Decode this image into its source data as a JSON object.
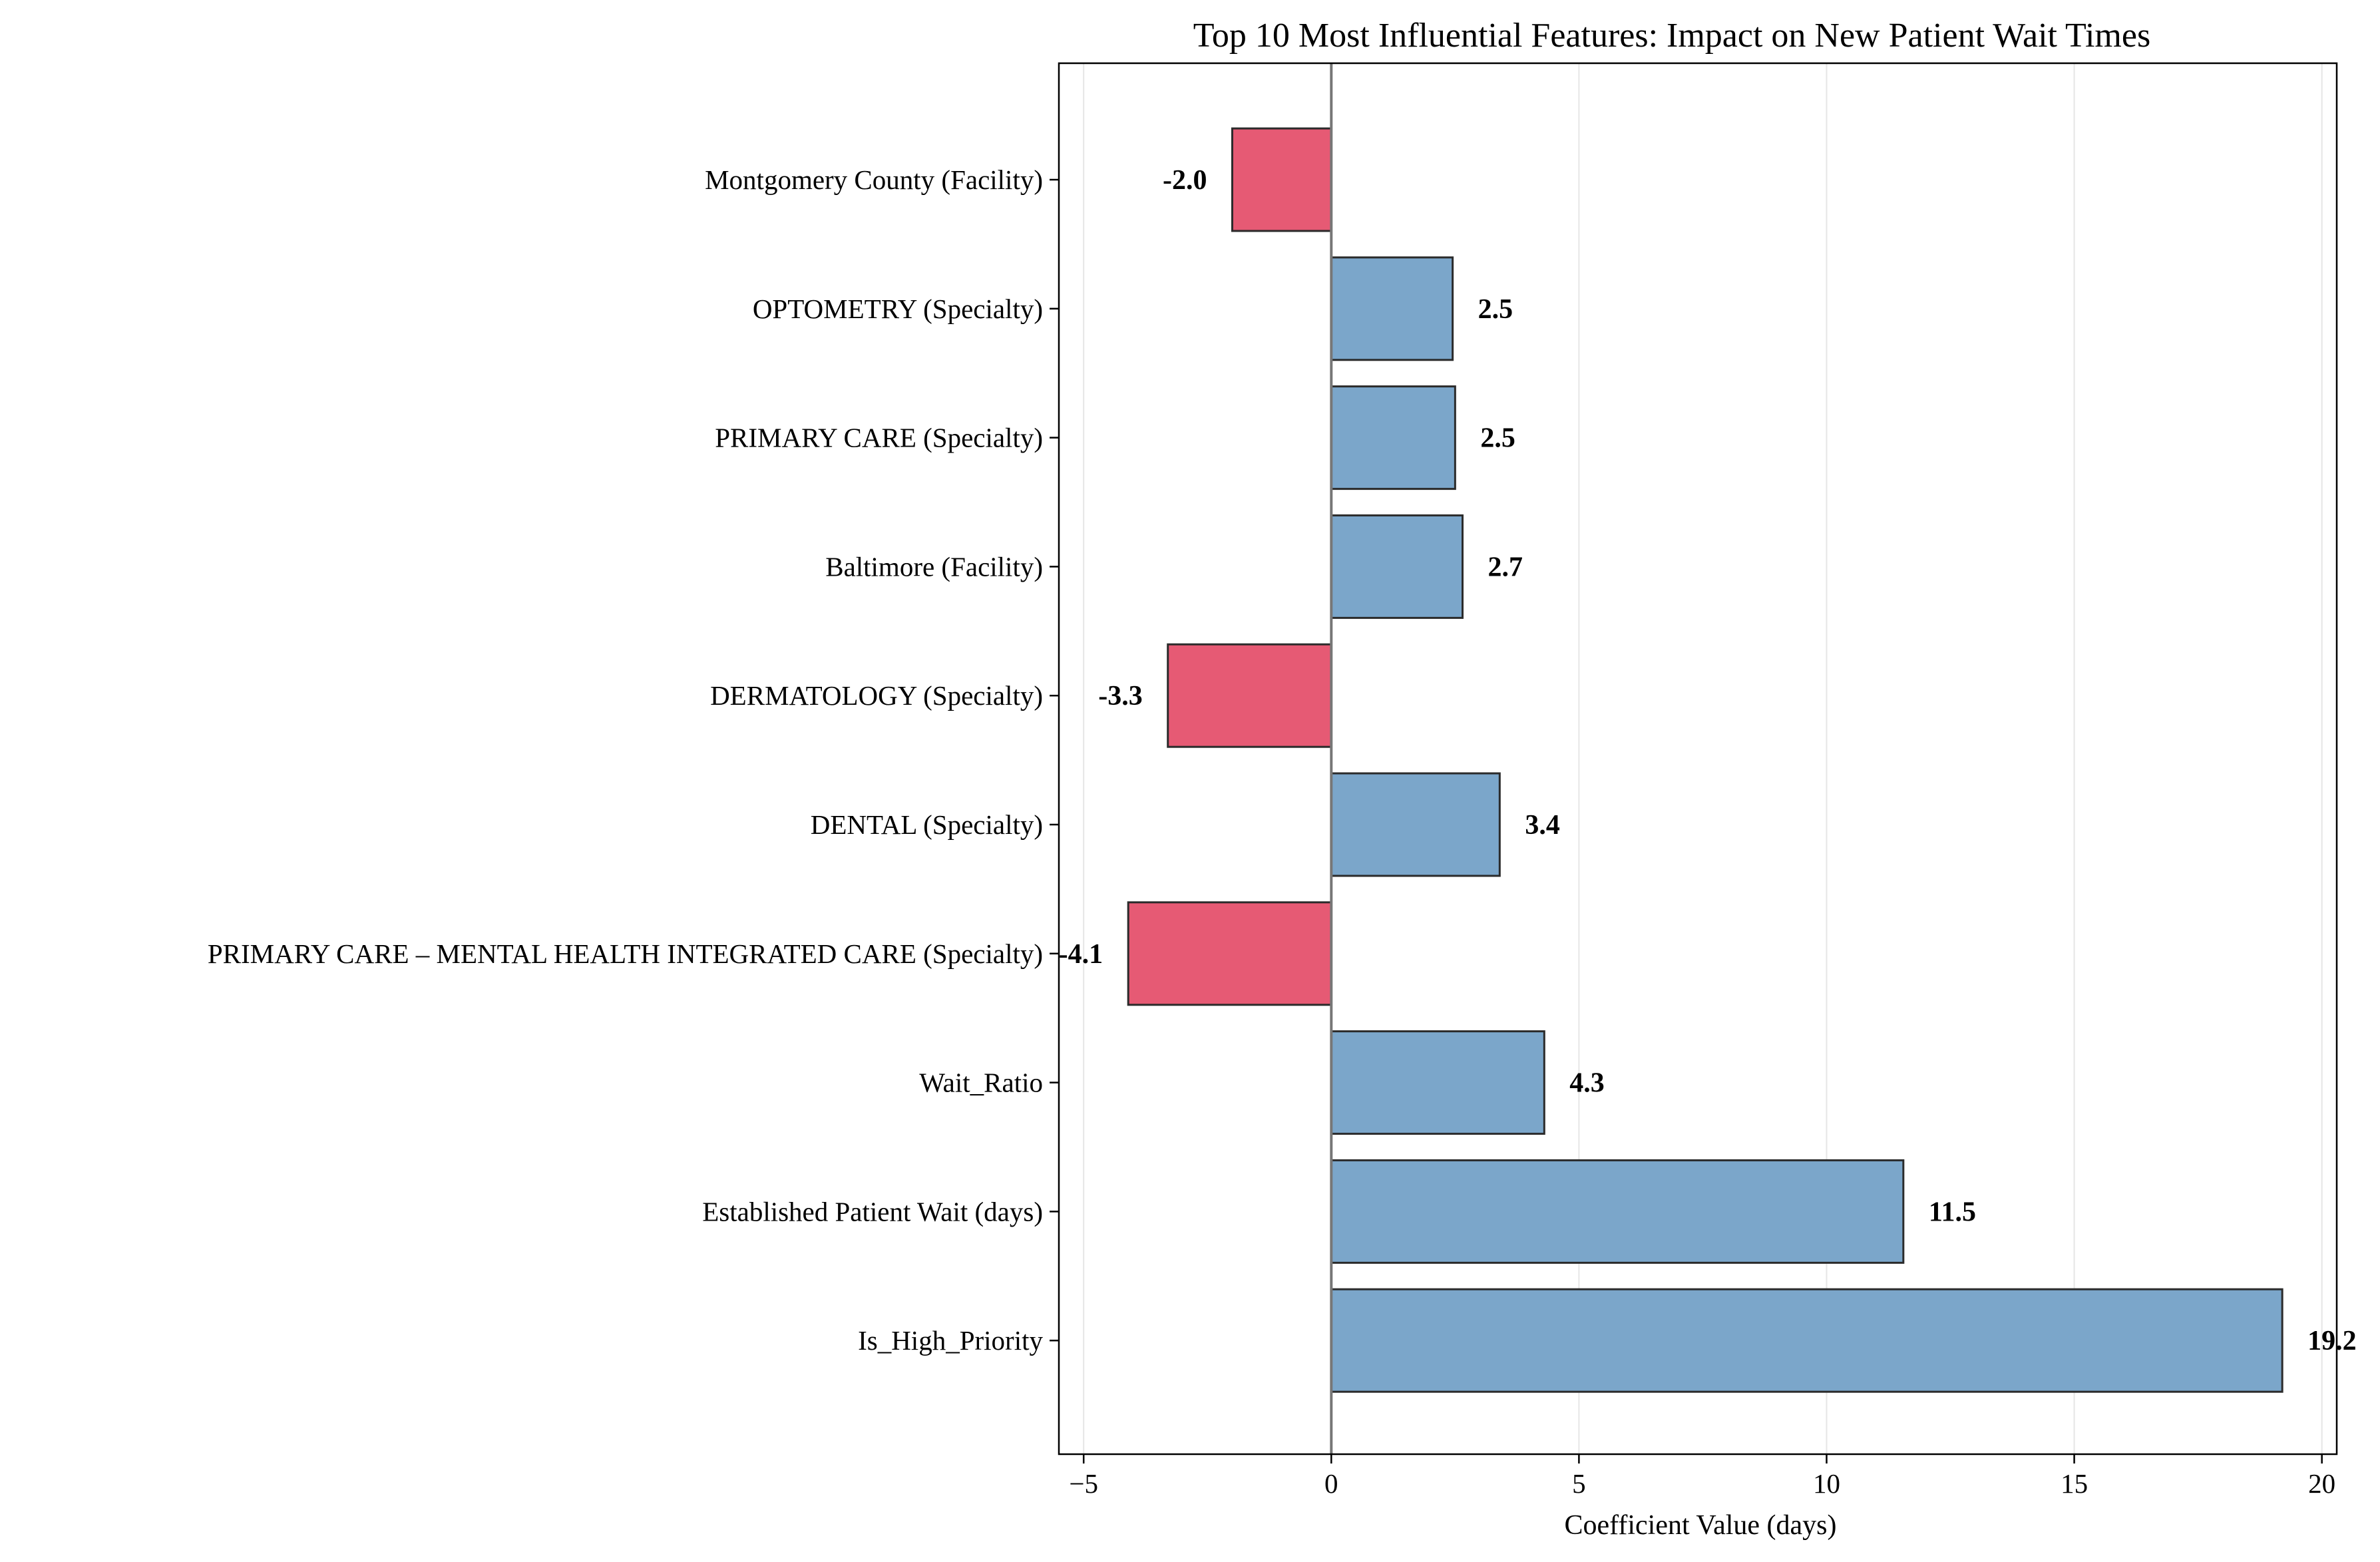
{
  "chart_data": {
    "type": "bar",
    "orientation": "horizontal",
    "title": "Top 10 Most Influential Features: Impact on New Patient Wait Times",
    "xlabel": "Coefficient Value (days)",
    "ylabel": "",
    "xlim": [
      -5.5,
      20.3
    ],
    "xticks": [
      -5,
      0,
      5,
      10,
      15,
      20
    ],
    "xtick_labels": [
      "−5",
      "0",
      "5",
      "10",
      "15",
      "20"
    ],
    "grid": "vertical",
    "categories": [
      "Montgomery County (Facility)",
      "OPTOMETRY (Specialty)",
      "PRIMARY CARE (Specialty)",
      "Baltimore (Facility)",
      "DERMATOLOGY (Specialty)",
      "DENTAL (Specialty)",
      "PRIMARY CARE – MENTAL HEALTH INTEGRATED CARE (Specialty)",
      "Wait_Ratio",
      "Established Patient Wait (days)",
      "Is_High_Priority"
    ],
    "values": [
      -2.0,
      2.45,
      2.5,
      2.65,
      -3.3,
      3.4,
      -4.1,
      4.3,
      11.55,
      19.2
    ],
    "value_labels": [
      "-2.0",
      "2.5",
      "2.5",
      "2.7",
      "-3.3",
      "3.4",
      "-4.1",
      "4.3",
      "11.5",
      "19.2"
    ],
    "colors": {
      "positive": "#7ba6ca",
      "negative": "#e65a74",
      "edge": "#2b2b2b",
      "zero_line": "#777777",
      "grid": "#e6e6e6"
    }
  }
}
